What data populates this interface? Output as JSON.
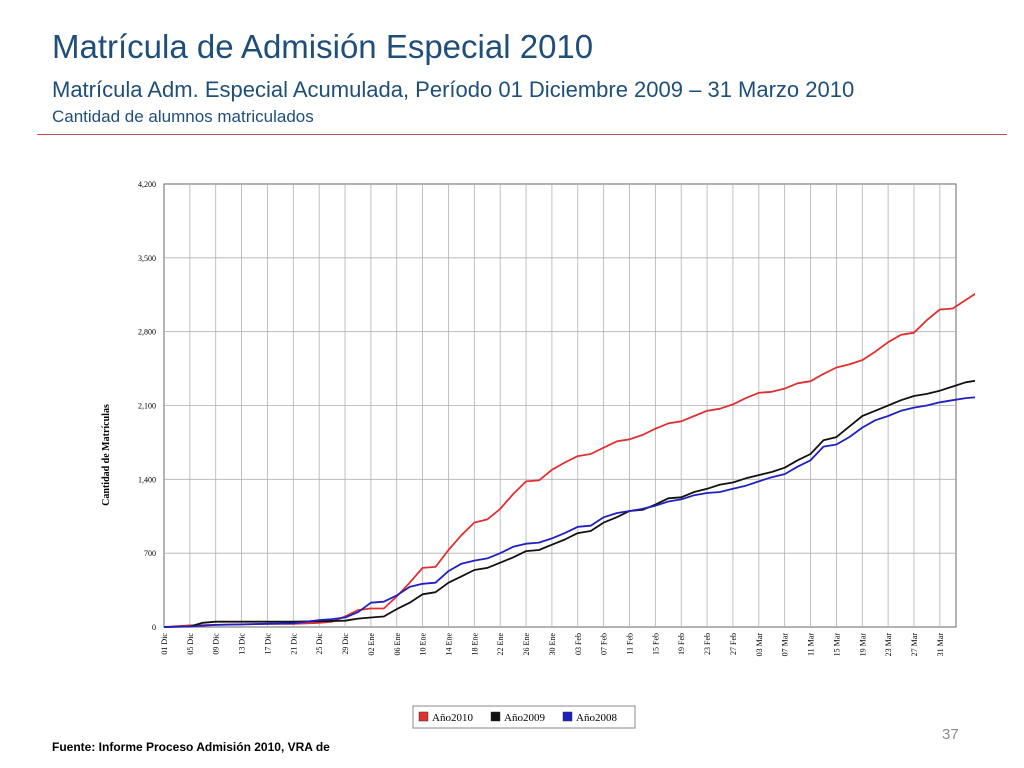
{
  "slide": {
    "title": "Matrícula de Admisión Especial 2010",
    "subtitle": "Matrícula Adm. Especial Acumulada, Período 01 Diciembre 2009 – 31 Marzo 2010",
    "caption": "Cantidad de alumnos matriculados",
    "source": "Fuente: Informe Proceso Admisión 2010, VRA de",
    "page_number": "37"
  },
  "chart_data": {
    "type": "line",
    "ylabel": "Cantidad de Matrículas",
    "ylim": [
      0,
      4200
    ],
    "yticks": [
      0,
      700,
      1400,
      2100,
      2800,
      3500,
      4200
    ],
    "ytick_labels": [
      "0",
      "700",
      "1,400",
      "2,100",
      "2,800",
      "3,500",
      "4,200"
    ],
    "x_axis": "day index from 01 Dic (0) to 31 Mar (120)",
    "xlim": [
      0,
      120
    ],
    "xticks": [
      0,
      4,
      8,
      12,
      16,
      20,
      24,
      28,
      32,
      36,
      40,
      44,
      48,
      52,
      56,
      60,
      64,
      68,
      72,
      76,
      80,
      84,
      88,
      92,
      96,
      100,
      104,
      108,
      112,
      116,
      120
    ],
    "xtick_labels": [
      "01 Dic",
      "05 Dic",
      "09 Dic",
      "13 Dic",
      "17 Dic",
      "21 Dic",
      "25 Dic",
      "29 Dic",
      "02 Ene",
      "06 Ene",
      "10 Ene",
      "14 Ene",
      "18 Ene",
      "22 Ene",
      "26 Ene",
      "30 Ene",
      "03 Feb",
      "07 Feb",
      "11 Feb",
      "15 Feb",
      "19 Feb",
      "23 Feb",
      "27 Feb",
      "03 Mar",
      "07 Mar",
      "11 Mar",
      "15 Mar",
      "19 Mar",
      "23 Mar",
      "27 Mar",
      "31 Mar"
    ],
    "grid": true,
    "legend_position": "bottom",
    "series": [
      {
        "name": "Año2010",
        "color": "#e03030",
        "points": [
          [
            0,
            0
          ],
          [
            4,
            15
          ],
          [
            8,
            20
          ],
          [
            12,
            25
          ],
          [
            16,
            30
          ],
          [
            20,
            30
          ],
          [
            24,
            40
          ],
          [
            26,
            50
          ],
          [
            28,
            100
          ],
          [
            30,
            160
          ],
          [
            32,
            175
          ],
          [
            34,
            175
          ],
          [
            36,
            290
          ],
          [
            38,
            420
          ],
          [
            40,
            560
          ],
          [
            42,
            570
          ],
          [
            44,
            730
          ],
          [
            46,
            870
          ],
          [
            48,
            990
          ],
          [
            50,
            1020
          ],
          [
            52,
            1120
          ],
          [
            54,
            1260
          ],
          [
            56,
            1380
          ],
          [
            58,
            1390
          ],
          [
            60,
            1490
          ],
          [
            62,
            1560
          ],
          [
            64,
            1620
          ],
          [
            66,
            1640
          ],
          [
            68,
            1700
          ],
          [
            70,
            1760
          ],
          [
            72,
            1780
          ],
          [
            74,
            1820
          ],
          [
            76,
            1880
          ],
          [
            78,
            1930
          ],
          [
            80,
            1950
          ],
          [
            82,
            2000
          ],
          [
            84,
            2050
          ],
          [
            86,
            2070
          ],
          [
            88,
            2110
          ],
          [
            90,
            2170
          ],
          [
            92,
            2220
          ],
          [
            94,
            2230
          ],
          [
            96,
            2260
          ],
          [
            98,
            2310
          ],
          [
            100,
            2330
          ],
          [
            102,
            2400
          ],
          [
            104,
            2460
          ],
          [
            106,
            2490
          ],
          [
            108,
            2530
          ],
          [
            110,
            2610
          ],
          [
            112,
            2700
          ],
          [
            114,
            2770
          ],
          [
            116,
            2790
          ],
          [
            118,
            2910
          ],
          [
            120,
            3010
          ],
          [
            122,
            3020
          ],
          [
            124,
            3100
          ],
          [
            126,
            3180
          ]
        ]
      },
      {
        "name": "Año2009",
        "color": "#111111",
        "points": [
          [
            0,
            0
          ],
          [
            4,
            5
          ],
          [
            6,
            40
          ],
          [
            8,
            50
          ],
          [
            12,
            50
          ],
          [
            16,
            50
          ],
          [
            20,
            50
          ],
          [
            24,
            55
          ],
          [
            28,
            60
          ],
          [
            30,
            80
          ],
          [
            32,
            90
          ],
          [
            34,
            100
          ],
          [
            36,
            170
          ],
          [
            38,
            230
          ],
          [
            40,
            310
          ],
          [
            42,
            330
          ],
          [
            44,
            420
          ],
          [
            46,
            480
          ],
          [
            48,
            540
          ],
          [
            50,
            560
          ],
          [
            52,
            610
          ],
          [
            54,
            660
          ],
          [
            56,
            720
          ],
          [
            58,
            730
          ],
          [
            60,
            780
          ],
          [
            62,
            830
          ],
          [
            64,
            890
          ],
          [
            66,
            910
          ],
          [
            68,
            990
          ],
          [
            70,
            1040
          ],
          [
            72,
            1100
          ],
          [
            74,
            1110
          ],
          [
            76,
            1160
          ],
          [
            78,
            1220
          ],
          [
            80,
            1230
          ],
          [
            82,
            1280
          ],
          [
            84,
            1310
          ],
          [
            86,
            1350
          ],
          [
            88,
            1370
          ],
          [
            90,
            1410
          ],
          [
            92,
            1440
          ],
          [
            94,
            1470
          ],
          [
            96,
            1510
          ],
          [
            98,
            1580
          ],
          [
            100,
            1640
          ],
          [
            102,
            1770
          ],
          [
            104,
            1800
          ],
          [
            106,
            1900
          ],
          [
            108,
            2000
          ],
          [
            110,
            2050
          ],
          [
            112,
            2100
          ],
          [
            114,
            2150
          ],
          [
            116,
            2190
          ],
          [
            118,
            2210
          ],
          [
            120,
            2240
          ],
          [
            122,
            2280
          ],
          [
            124,
            2320
          ],
          [
            126,
            2340
          ]
        ]
      },
      {
        "name": "Año2008",
        "color": "#2020c0",
        "points": [
          [
            0,
            0
          ],
          [
            4,
            5
          ],
          [
            8,
            20
          ],
          [
            12,
            25
          ],
          [
            16,
            30
          ],
          [
            20,
            35
          ],
          [
            24,
            65
          ],
          [
            26,
            75
          ],
          [
            28,
            90
          ],
          [
            30,
            140
          ],
          [
            32,
            230
          ],
          [
            34,
            240
          ],
          [
            36,
            300
          ],
          [
            38,
            380
          ],
          [
            40,
            410
          ],
          [
            42,
            420
          ],
          [
            44,
            530
          ],
          [
            46,
            600
          ],
          [
            48,
            630
          ],
          [
            50,
            650
          ],
          [
            52,
            700
          ],
          [
            54,
            760
          ],
          [
            56,
            790
          ],
          [
            58,
            800
          ],
          [
            60,
            840
          ],
          [
            62,
            890
          ],
          [
            64,
            950
          ],
          [
            66,
            960
          ],
          [
            68,
            1040
          ],
          [
            70,
            1080
          ],
          [
            72,
            1100
          ],
          [
            74,
            1120
          ],
          [
            76,
            1150
          ],
          [
            78,
            1190
          ],
          [
            80,
            1210
          ],
          [
            82,
            1250
          ],
          [
            84,
            1270
          ],
          [
            86,
            1280
          ],
          [
            88,
            1310
          ],
          [
            90,
            1340
          ],
          [
            92,
            1380
          ],
          [
            94,
            1420
          ],
          [
            96,
            1450
          ],
          [
            98,
            1520
          ],
          [
            100,
            1580
          ],
          [
            102,
            1710
          ],
          [
            104,
            1730
          ],
          [
            106,
            1800
          ],
          [
            108,
            1890
          ],
          [
            110,
            1960
          ],
          [
            112,
            2000
          ],
          [
            114,
            2050
          ],
          [
            116,
            2080
          ],
          [
            118,
            2100
          ],
          [
            120,
            2130
          ],
          [
            122,
            2150
          ],
          [
            124,
            2170
          ],
          [
            126,
            2180
          ]
        ]
      }
    ]
  }
}
